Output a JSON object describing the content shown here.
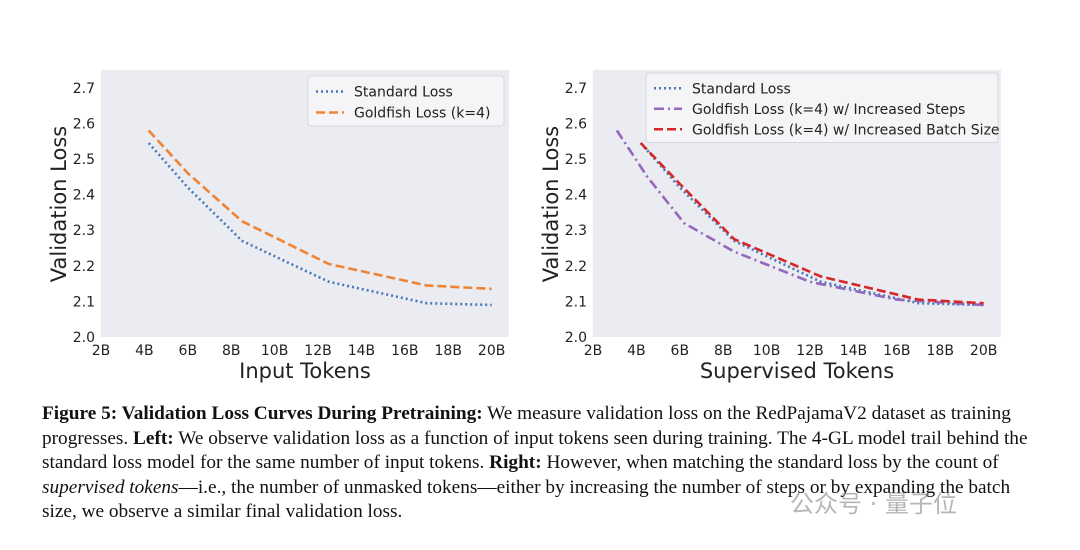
{
  "chart_data": [
    {
      "type": "line",
      "xlabel": "Input Tokens",
      "ylabel": "Validation Loss",
      "xlim": [
        2,
        20.8
      ],
      "ylim": [
        2.0,
        2.75
      ],
      "x_ticks": [
        "2B",
        "4B",
        "6B",
        "8B",
        "10B",
        "12B",
        "14B",
        "16B",
        "18B",
        "20B"
      ],
      "y_ticks": [
        "2.0",
        "2.1",
        "2.2",
        "2.3",
        "2.4",
        "2.5",
        "2.6",
        "2.7"
      ],
      "grid": false,
      "legend_position": "top-right",
      "series": [
        {
          "name": "Standard Loss",
          "color": "#4878b8",
          "dash": "dotted",
          "x": [
            4.2,
            6,
            8.5,
            12.5,
            17,
            20
          ],
          "y": [
            2.545,
            2.42,
            2.27,
            2.155,
            2.095,
            2.09
          ]
        },
        {
          "name": "Goldfish Loss (k=4)",
          "color": "#ee8536",
          "dash": "dashed",
          "x": [
            4.2,
            6,
            8.5,
            12.5,
            17,
            20
          ],
          "y": [
            2.58,
            2.46,
            2.325,
            2.205,
            2.145,
            2.135
          ]
        }
      ]
    },
    {
      "type": "line",
      "xlabel": "Supervised Tokens",
      "ylabel": "Validation Loss",
      "xlim": [
        2,
        20.8
      ],
      "ylim": [
        2.0,
        2.75
      ],
      "x_ticks": [
        "2B",
        "4B",
        "6B",
        "8B",
        "10B",
        "12B",
        "14B",
        "16B",
        "18B",
        "20B"
      ],
      "y_ticks": [
        "2.0",
        "2.1",
        "2.2",
        "2.3",
        "2.4",
        "2.5",
        "2.6",
        "2.7"
      ],
      "grid": false,
      "legend_position": "top-left",
      "series": [
        {
          "name": "Standard Loss",
          "color": "#4878b8",
          "dash": "dotted",
          "x": [
            4.2,
            6,
            8.5,
            12.5,
            17,
            20
          ],
          "y": [
            2.545,
            2.42,
            2.27,
            2.155,
            2.095,
            2.09
          ]
        },
        {
          "name": "Goldfish Loss (k=4) w/ Increased Steps",
          "color": "#9467bd",
          "dash": "dashdot",
          "x": [
            3.1,
            4.5,
            6.2,
            8.5,
            12,
            16,
            20
          ],
          "y": [
            2.58,
            2.45,
            2.32,
            2.24,
            2.155,
            2.105,
            2.09
          ]
        },
        {
          "name": "Goldfish Loss (k=4) w/ Increased Batch Size",
          "color": "#d62728",
          "dash": "dashed",
          "x": [
            4.2,
            6,
            8.5,
            12.5,
            17,
            20
          ],
          "y": [
            2.545,
            2.43,
            2.275,
            2.17,
            2.105,
            2.095
          ]
        }
      ]
    }
  ],
  "caption": {
    "label": "Figure 5: Validation Loss Curves During Pretraining:",
    "text1": " We measure validation loss on the RedPajamaV2 dataset as training progresses. ",
    "left_label": "Left:",
    "text2": " We observe validation loss as a function of input tokens seen during training. The 4-GL model trail behind the standard loss model for the same number of input tokens. ",
    "right_label": "Right:",
    "text3": " However, when matching the standard loss by the count of ",
    "italic": "supervised tokens",
    "text4": "—i.e., the number of unmasked tokens—either by increasing the number of steps or by expanding the batch size, we observe a similar final validation loss."
  },
  "watermark": "公众号 · 量子位"
}
